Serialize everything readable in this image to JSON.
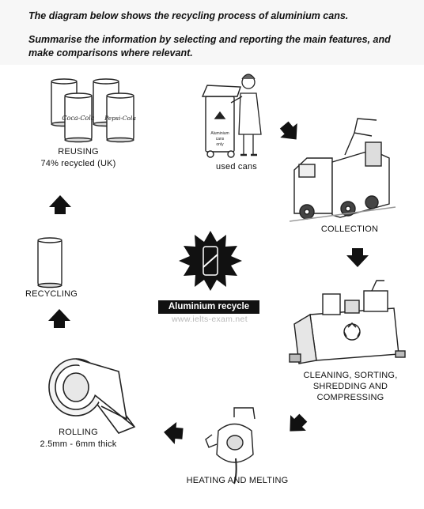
{
  "intro": {
    "line1": "The diagram below shows the recycling process of aluminium cans.",
    "line2": "Summarise the information by selecting and reporting the main features, and make comparisons where relevant."
  },
  "stages": {
    "reusing": {
      "title": "REUSING",
      "detail": "74% recycled (UK)"
    },
    "used_cans": {
      "title": "used cans"
    },
    "collection": {
      "title": "COLLECTION"
    },
    "cleaning": {
      "title": "CLEANING, SORTING, SHREDDING AND COMPRESSING"
    },
    "heating": {
      "title": "HEATING AND MELTING"
    },
    "rolling": {
      "title": "ROLLING",
      "detail": "2.5mm - 6mm thick"
    },
    "recycling": {
      "title": "RECYCLING"
    }
  },
  "center": {
    "badge": "Aluminium recycle",
    "watermark": "www.ielts-exam.net"
  },
  "bin_text": {
    "line1": "Aluminium",
    "line2": "cans",
    "line3": "only"
  },
  "can_brands": {
    "coke": "Coca-Cola",
    "pepsi": "Pepsi-Cola"
  },
  "icons": [
    "can-icon",
    "recycle-bin-icon",
    "garbage-truck-icon",
    "shredder-machine-icon",
    "furnace-icon",
    "metal-roll-icon",
    "recycle-symbol-icon",
    "arrow-icon"
  ]
}
